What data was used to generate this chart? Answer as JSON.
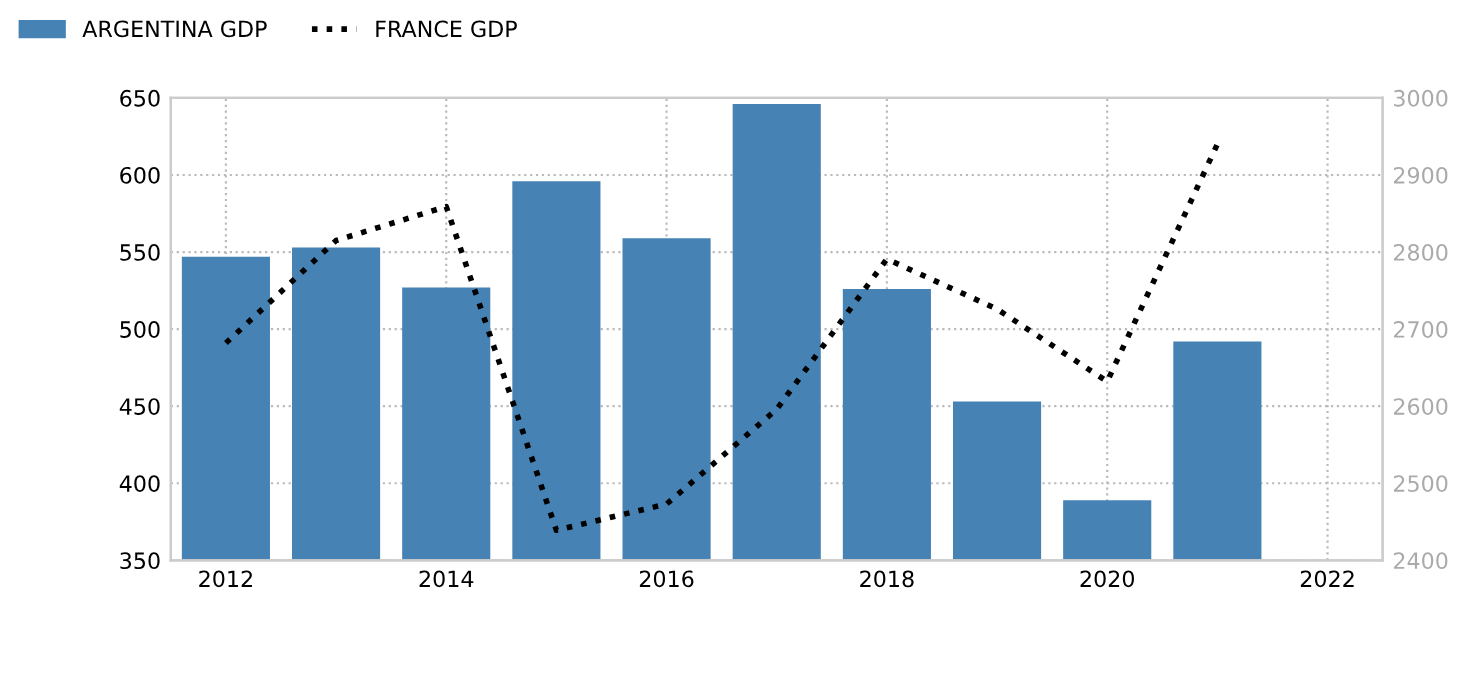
{
  "chart_data": {
    "type": "bar",
    "x": [
      2012,
      2013,
      2014,
      2015,
      2016,
      2017,
      2018,
      2019,
      2020,
      2021
    ],
    "series": [
      {
        "name": "ARGENTINA GDP",
        "color": "#4682b4",
        "values": [
          547,
          553,
          527,
          596,
          559,
          646,
          526,
          453,
          389,
          492
        ]
      },
      {
        "name": "FRANCE GDP",
        "type": "line",
        "axis": "y2",
        "color": "#000000",
        "line_style": "dotted",
        "values": [
          2682,
          2815,
          2859,
          2439,
          2473,
          2596,
          2791,
          2726,
          2632,
          2940
        ]
      }
    ],
    "xlim": [
      2011.5,
      2022.5
    ],
    "xticks": [
      2012,
      2014,
      2016,
      2018,
      2020,
      2022
    ],
    "ylim": [
      350,
      650
    ],
    "yticks": [
      350,
      400,
      450,
      500,
      550,
      600,
      650
    ],
    "y2lim": [
      2400,
      3000
    ],
    "y2ticks": [
      2400,
      2500,
      2600,
      2700,
      2800,
      2900,
      3000
    ],
    "grid": true,
    "legend": "top left"
  }
}
